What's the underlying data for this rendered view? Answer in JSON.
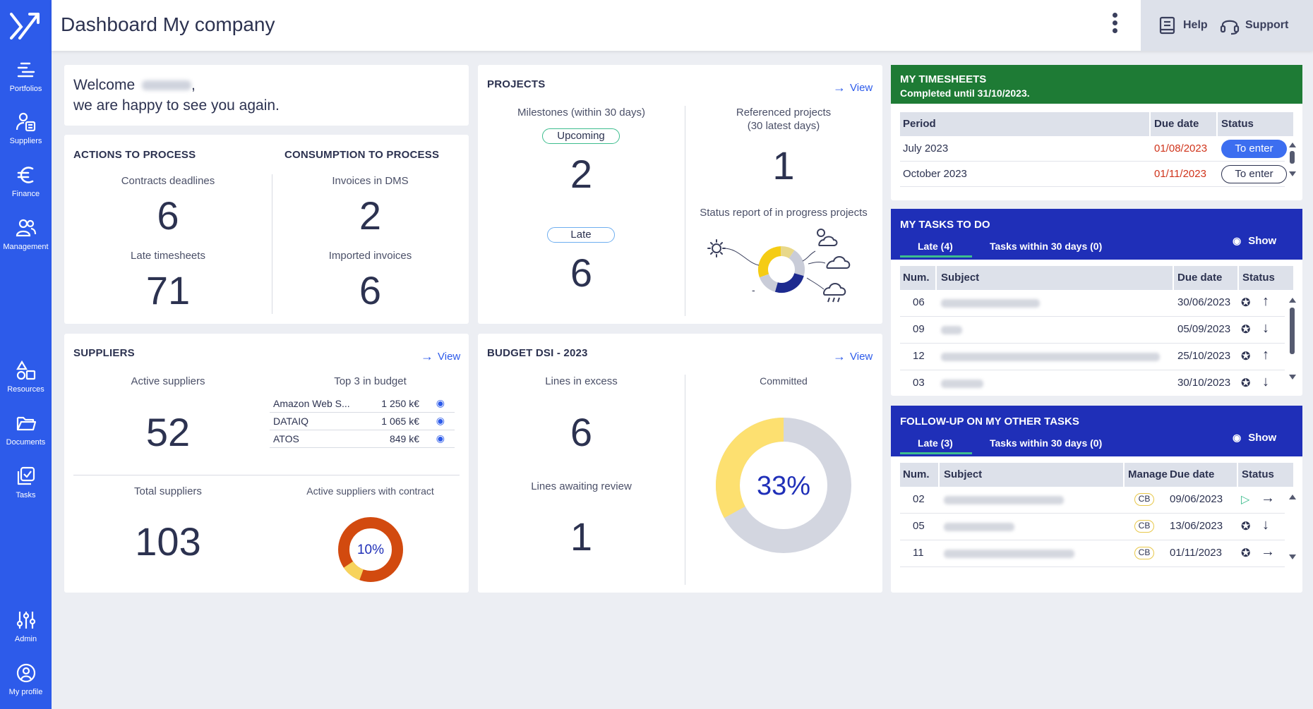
{
  "sidebar": {
    "items": [
      {
        "label": "Portfolios",
        "icon": "portfolios-icon"
      },
      {
        "label": "Suppliers",
        "icon": "suppliers-icon"
      },
      {
        "label": "Finance",
        "icon": "euro-icon"
      },
      {
        "label": "Management",
        "icon": "people-icon"
      },
      {
        "label": "Resources",
        "icon": "shapes-icon"
      },
      {
        "label": "Documents",
        "icon": "folder-icon"
      },
      {
        "label": "Tasks",
        "icon": "tasks-icon"
      },
      {
        "label": "Admin",
        "icon": "sliders-icon"
      },
      {
        "label": "My profile",
        "icon": "user-circle-icon"
      }
    ]
  },
  "header": {
    "title": "Dashboard My company",
    "help_label": "Help",
    "support_label": "Support"
  },
  "welcome": {
    "line1": "Welcome",
    "line1_suffix": ",",
    "line2": "we are happy to see you again."
  },
  "actions": {
    "title": "ACTIONS TO PROCESS",
    "contracts_label": "Contracts deadlines",
    "contracts_value": "6",
    "late_timesheets_label": "Late timesheets",
    "late_timesheets_value": "71"
  },
  "consumption": {
    "title": "CONSUMPTION TO PROCESS",
    "invoices_label": "Invoices in DMS",
    "invoices_value": "2",
    "imported_label": "Imported invoices",
    "imported_value": "6"
  },
  "projects": {
    "title": "PROJECTS",
    "view_label": "View",
    "milestones_label": "Milestones (within 30 days)",
    "upcoming_label": "Upcoming",
    "upcoming_value": "2",
    "late_label": "Late",
    "late_value": "6",
    "referenced_label_1": "Referenced projects",
    "referenced_label_2": "(30 latest days)",
    "referenced_value": "1",
    "status_report_label": "Status report of in progress projects",
    "status_dash": "-",
    "status_donut": [
      {
        "status": "sunny",
        "value": 30,
        "color": "#f5cc14"
      },
      {
        "status": "cloudy-sun",
        "value": 10,
        "color": "#e8d88a"
      },
      {
        "status": "cloudy",
        "value": 20,
        "color": "#c9ccd8"
      },
      {
        "status": "storm",
        "value": 25,
        "color": "#1d2a8f"
      },
      {
        "status": "none",
        "value": 15,
        "color": "#c9ccd8"
      }
    ]
  },
  "suppliers": {
    "title": "SUPPLIERS",
    "view_label": "View",
    "active_label": "Active suppliers",
    "active_value": "52",
    "top3_label": "Top 3 in budget",
    "top3": [
      {
        "name": "Amazon Web S...",
        "amount": "1 250 k€"
      },
      {
        "name": "DATAIQ",
        "amount": "1 065 k€"
      },
      {
        "name": "ATOS",
        "amount": "849 k€"
      }
    ],
    "total_label": "Total suppliers",
    "total_value": "103",
    "with_contract_label": "Active suppliers with contract",
    "with_contract_pct": "10%",
    "with_contract_fraction": 0.1
  },
  "budget": {
    "title": "BUDGET DSI - 2023",
    "view_label": "View",
    "excess_label": "Lines in excess",
    "excess_value": "6",
    "review_label": "Lines awaiting review",
    "review_value": "1",
    "committed_label": "Committed",
    "committed_pct": "33%",
    "committed_fraction": 0.33
  },
  "timesheets": {
    "title": "MY TIMESHEETS",
    "subtitle": "Completed until 31/10/2023.",
    "headers": [
      "Period",
      "Due date",
      "Status"
    ],
    "rows": [
      {
        "period": "July 2023",
        "due": "01/08/2023",
        "status": "To enter"
      },
      {
        "period": "October 2023",
        "due": "01/11/2023",
        "status": "To enter"
      }
    ]
  },
  "tasks": {
    "title": "MY TASKS TO DO",
    "tab_late": "Late (4)",
    "tab_within": "Tasks within 30 days (0)",
    "show_label": "Show",
    "headers": [
      "Num.",
      "Subject",
      "Due date",
      "Status"
    ],
    "rows": [
      {
        "num": "06",
        "due": "30/06/2023",
        "dir": "↑"
      },
      {
        "num": "09",
        "due": "05/09/2023",
        "dir": "↓"
      },
      {
        "num": "12",
        "due": "25/10/2023",
        "dir": "↑"
      },
      {
        "num": "03",
        "due": "30/10/2023",
        "dir": "↓"
      }
    ]
  },
  "followup": {
    "title": "FOLLOW-UP ON MY OTHER TASKS",
    "tab_late": "Late (3)",
    "tab_within": "Tasks within 30 days (0)",
    "show_label": "Show",
    "headers": [
      "Num.",
      "Subject",
      "Manage",
      "Due date",
      "Status"
    ],
    "rows": [
      {
        "num": "02",
        "manager": "CB",
        "due": "09/06/2023",
        "dir": "→"
      },
      {
        "num": "05",
        "manager": "CB",
        "due": "13/06/2023",
        "dir": "↓"
      },
      {
        "num": "11",
        "manager": "CB",
        "due": "01/11/2023",
        "dir": "→"
      }
    ]
  },
  "colors": {
    "sidebar": "#2d5bea",
    "timesheets_header": "#1e7b35",
    "tasks_header": "#1f2fb8",
    "accent": "#2d5bea",
    "late_date": "#d0341b"
  }
}
